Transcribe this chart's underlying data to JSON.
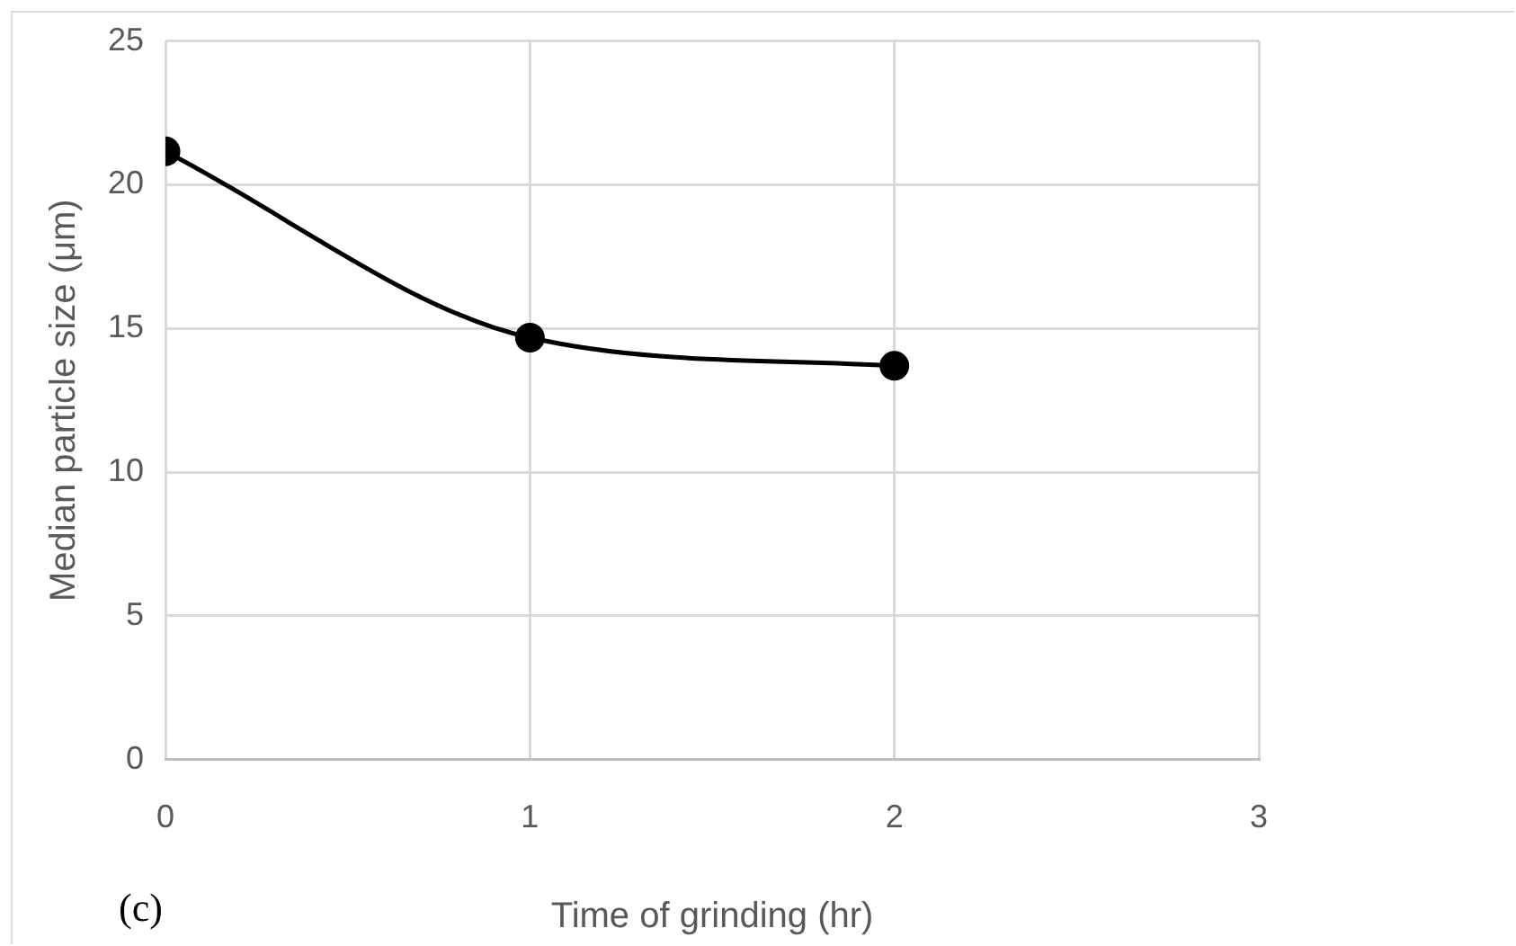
{
  "chart_data": {
    "type": "line",
    "xlabel": "Time of grinding (hr)",
    "ylabel": "Median particle size (μm)",
    "annotations": [
      "(c)"
    ],
    "x": [
      0,
      1,
      2
    ],
    "series": [
      {
        "color": "#000000",
        "values": [
          21.16,
          14.68,
          13.7
        ]
      }
    ],
    "xlim": [
      0,
      3
    ],
    "xticks": [
      0,
      1,
      2,
      3
    ],
    "ylim": [
      0,
      25
    ],
    "yticks": [
      0,
      5,
      10,
      15,
      20,
      25
    ],
    "grid": true,
    "legend": false,
    "marker": "circle",
    "line_style": "solid"
  }
}
